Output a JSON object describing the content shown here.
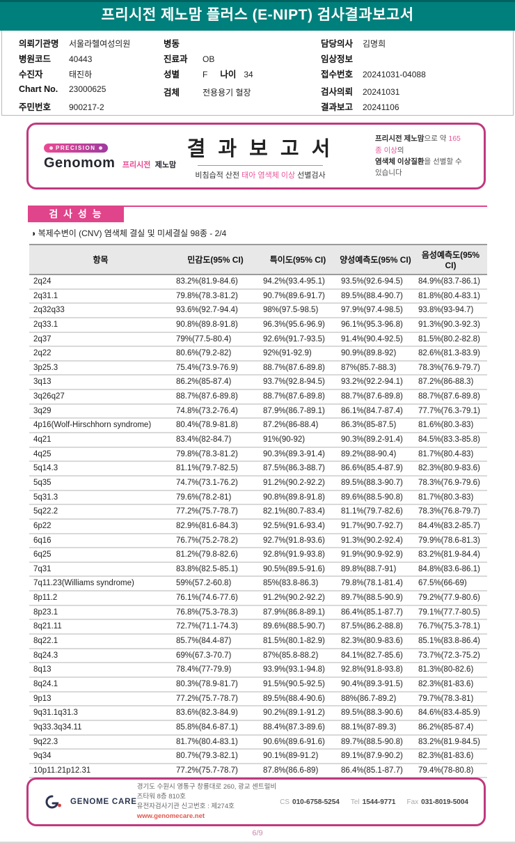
{
  "header": {
    "title": "프리시전 제노맘 플러스 (E-NIPT) 검사결과보고서"
  },
  "patient": {
    "left": [
      {
        "label": "의뢰기관명",
        "value": "서울라헬여성의원"
      },
      {
        "label": "병원코드",
        "value": "40443"
      },
      {
        "label": "수진자",
        "value": "태진하"
      },
      {
        "label": "Chart No.",
        "value": "23000625"
      },
      {
        "label": "주민번호",
        "value": "900217-2"
      }
    ],
    "mid": [
      {
        "label": "병동",
        "value": ""
      },
      {
        "label": "진료과",
        "value": "OB"
      },
      {
        "label": "성별",
        "value": "F",
        "label2": "나이",
        "value2": "34"
      },
      {
        "label": "검체",
        "value": "전용용기 혈장"
      }
    ],
    "right": [
      {
        "label": "담당의사",
        "value": "김명희"
      },
      {
        "label": "임상정보",
        "value": ""
      },
      {
        "label": "접수번호",
        "value": "20241031-04088"
      },
      {
        "label": "검사의뢰",
        "value": "20241031"
      },
      {
        "label": "결과보고",
        "value": "20241106"
      }
    ]
  },
  "banner": {
    "badge": "PRECISION",
    "logo_main": "Genomom",
    "logo_sub_pink": "프리시전",
    "logo_sub_dark": "제노맘",
    "title": "결 과 보 고 서",
    "subtitle_pre": "비침습적 산전 ",
    "subtitle_accent": "태아 염색체 이상",
    "subtitle_post": " 선별검사",
    "note1_bold": "프리시전 제노맘",
    "note1_mid": "으로 약 ",
    "note1_accent": "165종 이상",
    "note1_end": "의",
    "note2_bold": "염색체 이상질환",
    "note2_end": "을 선별할 수 있습니다"
  },
  "section": {
    "title": "검 사 성 능",
    "subtitle": "◑ 복제수변이 (CNV) 염색체 결실 및 미세결실 98종 - 2/4"
  },
  "table": {
    "headers": [
      "항목",
      "민감도(95% CI)",
      "특이도(95% CI)",
      "양성예측도(95% CI)",
      "음성예측도(95% CI)"
    ],
    "rows": [
      [
        "2q24",
        "83.2%(81.9-84.6)",
        "94.2%(93.4-95.1)",
        "93.5%(92.6-94.5)",
        "84.9%(83.7-86.1)"
      ],
      [
        "2q31.1",
        "79.8%(78.3-81.2)",
        "90.7%(89.6-91.7)",
        "89.5%(88.4-90.7)",
        "81.8%(80.4-83.1)"
      ],
      [
        "2q32q33",
        "93.6%(92.7-94.4)",
        "98%(97.5-98.5)",
        "97.9%(97.4-98.5)",
        "93.8%(93-94.7)"
      ],
      [
        "2q33.1",
        "90.8%(89.8-91.8)",
        "96.3%(95.6-96.9)",
        "96.1%(95.3-96.8)",
        "91.3%(90.3-92.3)"
      ],
      [
        "2q37",
        "79%(77.5-80.4)",
        "92.6%(91.7-93.5)",
        "91.4%(90.4-92.5)",
        "81.5%(80.2-82.8)"
      ],
      [
        "2q22",
        "80.6%(79.2-82)",
        "92%(91-92.9)",
        "90.9%(89.8-92)",
        "82.6%(81.3-83.9)"
      ],
      [
        "3p25.3",
        "75.4%(73.9-76.9)",
        "88.7%(87.6-89.8)",
        "87%(85.7-88.3)",
        "78.3%(76.9-79.7)"
      ],
      [
        "3q13",
        "86.2%(85-87.4)",
        "93.7%(92.8-94.5)",
        "93.2%(92.2-94.1)",
        "87.2%(86-88.3)"
      ],
      [
        "3q26q27",
        "88.7%(87.6-89.8)",
        "88.7%(87.6-89.8)",
        "88.7%(87.6-89.8)",
        "88.7%(87.6-89.8)"
      ],
      [
        "3q29",
        "74.8%(73.2-76.4)",
        "87.9%(86.7-89.1)",
        "86.1%(84.7-87.4)",
        "77.7%(76.3-79.1)"
      ],
      [
        "4p16(Wolf-Hirschhorn syndrome)",
        "80.4%(78.9-81.8)",
        "87.2%(86-88.4)",
        "86.3%(85-87.5)",
        "81.6%(80.3-83)"
      ],
      [
        "4q21",
        "83.4%(82-84.7)",
        "91%(90-92)",
        "90.3%(89.2-91.4)",
        "84.5%(83.3-85.8)"
      ],
      [
        "4q25",
        "79.8%(78.3-81.2)",
        "90.3%(89.3-91.4)",
        "89.2%(88-90.4)",
        "81.7%(80.4-83)"
      ],
      [
        "5q14.3",
        "81.1%(79.7-82.5)",
        "87.5%(86.3-88.7)",
        "86.6%(85.4-87.9)",
        "82.3%(80.9-83.6)"
      ],
      [
        "5q35",
        "74.7%(73.1-76.2)",
        "91.2%(90.2-92.2)",
        "89.5%(88.3-90.7)",
        "78.3%(76.9-79.6)"
      ],
      [
        "5q31.3",
        "79.6%(78.2-81)",
        "90.8%(89.8-91.8)",
        "89.6%(88.5-90.8)",
        "81.7%(80.3-83)"
      ],
      [
        "5q22.2",
        "77.2%(75.7-78.7)",
        "82.1%(80.7-83.4)",
        "81.1%(79.7-82.6)",
        "78.3%(76.8-79.7)"
      ],
      [
        "6p22",
        "82.9%(81.6-84.3)",
        "92.5%(91.6-93.4)",
        "91.7%(90.7-92.7)",
        "84.4%(83.2-85.7)"
      ],
      [
        "6q16",
        "76.7%(75.2-78.2)",
        "92.7%(91.8-93.6)",
        "91.3%(90.2-92.4)",
        "79.9%(78.6-81.3)"
      ],
      [
        "6q25",
        "81.2%(79.8-82.6)",
        "92.8%(91.9-93.8)",
        "91.9%(90.9-92.9)",
        "83.2%(81.9-84.4)"
      ],
      [
        "7q31",
        "83.8%(82.5-85.1)",
        "90.5%(89.5-91.6)",
        "89.8%(88.7-91)",
        "84.8%(83.6-86.1)"
      ],
      [
        "7q11.23(Williams syndrome)",
        "59%(57.2-60.8)",
        "85%(83.8-86.3)",
        "79.8%(78.1-81.4)",
        "67.5%(66-69)"
      ],
      [
        "8p11.2",
        "76.1%(74.6-77.6)",
        "91.2%(90.2-92.2)",
        "89.7%(88.5-90.9)",
        "79.2%(77.9-80.6)"
      ],
      [
        "8p23.1",
        "76.8%(75.3-78.3)",
        "87.9%(86.8-89.1)",
        "86.4%(85.1-87.7)",
        "79.1%(77.7-80.5)"
      ],
      [
        "8q21.11",
        "72.7%(71.1-74.3)",
        "89.6%(88.5-90.7)",
        "87.5%(86.2-88.8)",
        "76.7%(75.3-78.1)"
      ],
      [
        "8q22.1",
        "85.7%(84.4-87)",
        "81.5%(80.1-82.9)",
        "82.3%(80.9-83.6)",
        "85.1%(83.8-86.4)"
      ],
      [
        "8q24.3",
        "69%(67.3-70.7)",
        "87%(85.8-88.2)",
        "84.1%(82.7-85.6)",
        "73.7%(72.3-75.2)"
      ],
      [
        "8q13",
        "78.4%(77-79.9)",
        "93.9%(93.1-94.8)",
        "92.8%(91.8-93.8)",
        "81.3%(80-82.6)"
      ],
      [
        "8q24.1",
        "80.3%(78.9-81.7)",
        "91.5%(90.5-92.5)",
        "90.4%(89.3-91.5)",
        "82.3%(81-83.6)"
      ],
      [
        "9p13",
        "77.2%(75.7-78.7)",
        "89.5%(88.4-90.6)",
        "88%(86.7-89.2)",
        "79.7%(78.3-81)"
      ],
      [
        "9q31.1q31.3",
        "83.6%(82.3-84.9)",
        "90.2%(89.1-91.2)",
        "89.5%(88.3-90.6)",
        "84.6%(83.4-85.9)"
      ],
      [
        "9q33.3q34.11",
        "85.8%(84.6-87.1)",
        "88.4%(87.3-89.6)",
        "88.1%(87-89.3)",
        "86.2%(85-87.4)"
      ],
      [
        "9q22.3",
        "81.7%(80.4-83.1)",
        "90.6%(89.6-91.6)",
        "89.7%(88.5-90.8)",
        "83.2%(81.9-84.5)"
      ],
      [
        "9q34",
        "80.7%(79.3-82.1)",
        "90.1%(89-91.2)",
        "89.1%(87.9-90.2)",
        "82.3%(81-83.6)"
      ],
      [
        "10p11.21p12.31",
        "77.2%(75.7-78.7)",
        "87.8%(86.6-89)",
        "86.4%(85.1-87.7)",
        "79.4%(78-80.8)"
      ]
    ]
  },
  "footer": {
    "logo": "GENOME CARE",
    "address": "경기도 수원시 영통구 창룡대로 260, 광교 센트럴비즈타워 8층 810호",
    "license": "유전자검사기관 신고번호 : 제274호",
    "website": "www.genomecare.net",
    "cs_label": "CS",
    "cs": "010-6758-5254",
    "tel_label": "Tel",
    "tel": "1544-9771",
    "fax_label": "Fax",
    "fax": "031-8019-5004"
  },
  "page_number": "6/9",
  "colors": {
    "teal": "#00807c",
    "pink_border": "#c0397f",
    "pink_section": "#e0448a",
    "pink_accent": "#ea559c",
    "website_red": "#e2574f"
  }
}
